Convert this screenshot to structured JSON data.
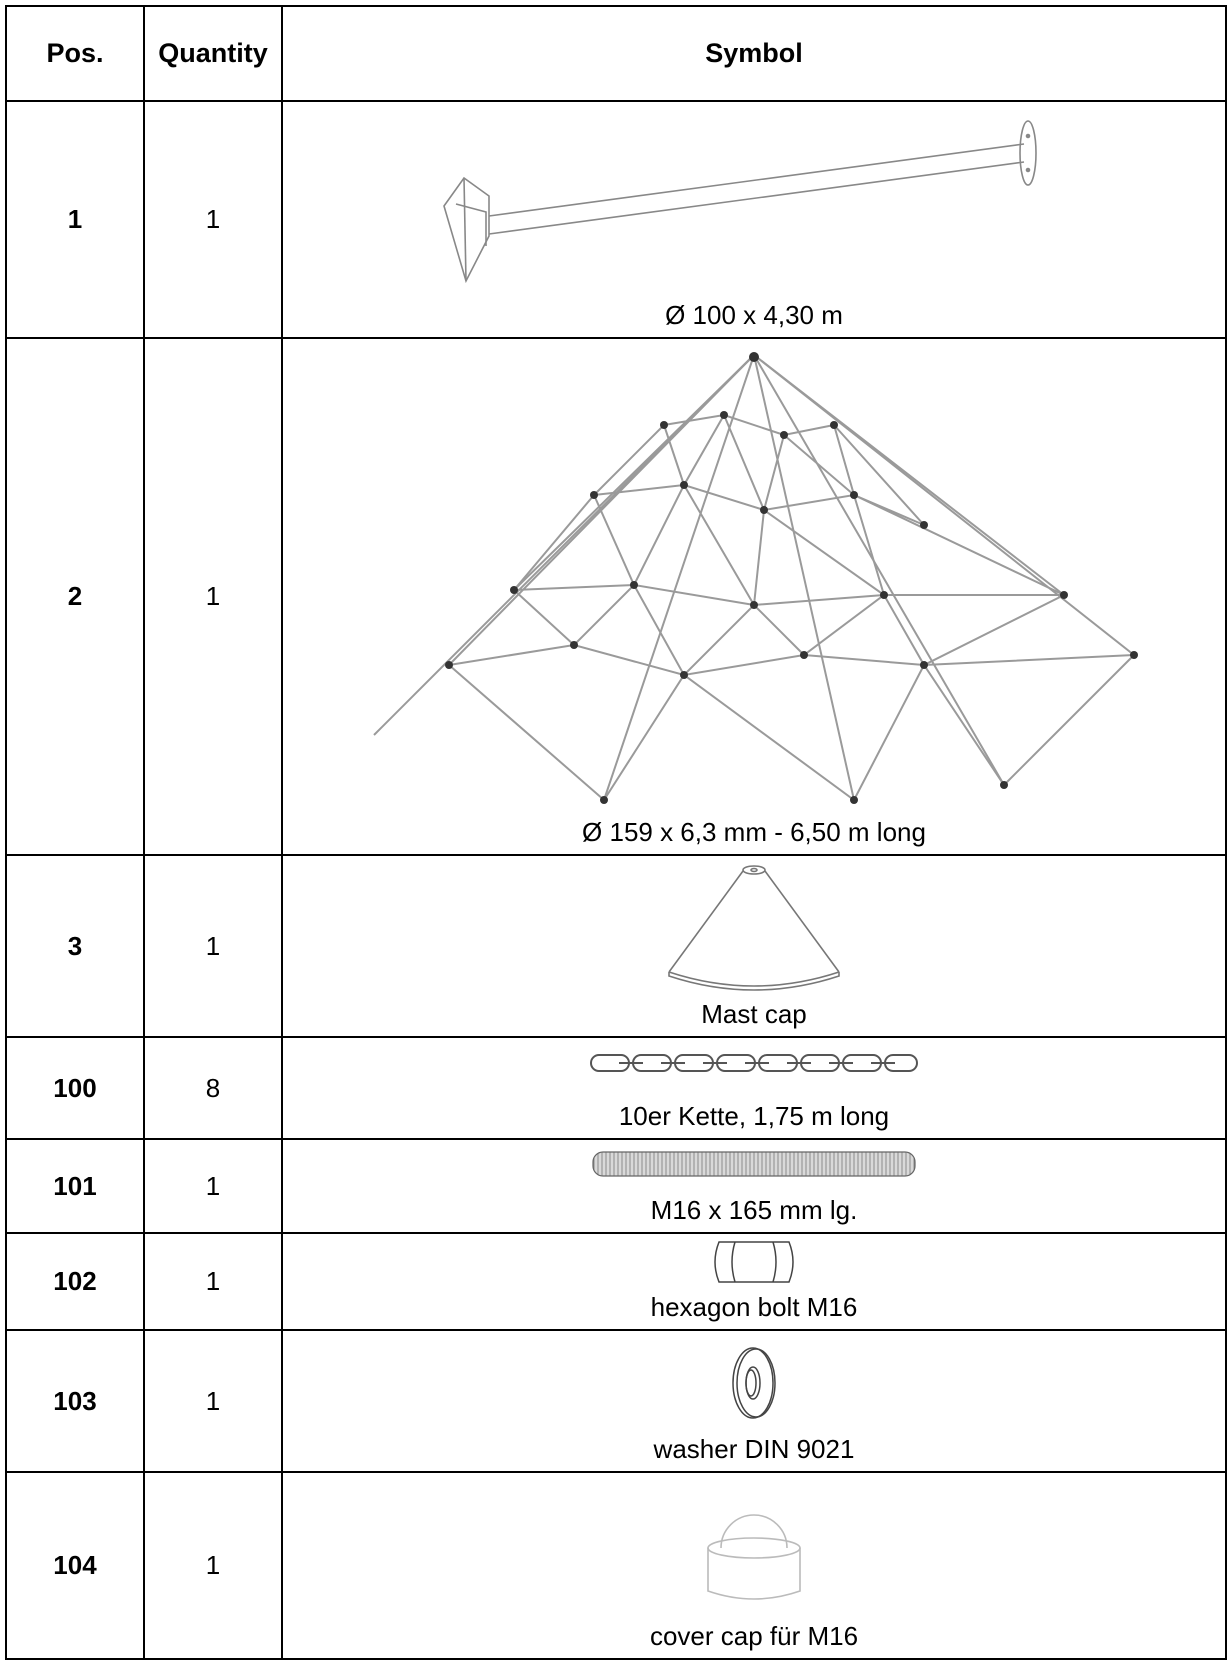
{
  "table": {
    "headers": {
      "pos": "Pos.",
      "quantity": "Quantity",
      "symbol": "Symbol"
    },
    "rows": [
      {
        "pos": "1",
        "quantity": "1",
        "description": "Ø 100 x 4,30 m",
        "icon": "mast-pole-icon"
      },
      {
        "pos": "2",
        "quantity": "1",
        "description": "Ø 159 x 6,3 mm - 6,50 m long",
        "icon": "rope-net-pyramid-icon"
      },
      {
        "pos": "3",
        "quantity": "1",
        "description": "Mast cap",
        "icon": "mast-cap-icon"
      },
      {
        "pos": "100",
        "quantity": "8",
        "description": "10er Kette, 1,75 m long",
        "icon": "chain-icon"
      },
      {
        "pos": "101",
        "quantity": "1",
        "description": "M16 x 165 mm lg.",
        "icon": "threaded-rod-icon"
      },
      {
        "pos": "102",
        "quantity": "1",
        "description": "hexagon bolt M16",
        "icon": "hex-nut-icon"
      },
      {
        "pos": "103",
        "quantity": "1",
        "description": "washer DIN 9021",
        "icon": "washer-icon"
      },
      {
        "pos": "104",
        "quantity": "1",
        "description": "cover cap für M16",
        "icon": "cover-cap-icon"
      }
    ]
  }
}
